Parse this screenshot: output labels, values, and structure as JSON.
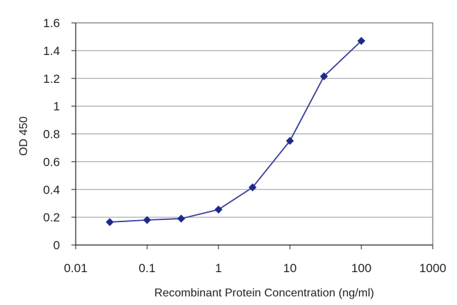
{
  "chart_data": {
    "type": "line",
    "title": "",
    "xlabel": "Recombinant Protein Concentration (ng/ml)",
    "ylabel": "OD 450",
    "x_scale": "log",
    "xlim": [
      0.01,
      1000
    ],
    "ylim": [
      0,
      1.6
    ],
    "x_ticks": [
      "0.01",
      "0.1",
      "1",
      "10",
      "100",
      "1000"
    ],
    "y_ticks": [
      "0",
      "0.2",
      "0.4",
      "0.6",
      "0.8",
      "1",
      "1.2",
      "1.4",
      "1.6"
    ],
    "grid": "horizontal",
    "legend": "none",
    "series": [
      {
        "color": "#3a3f9e",
        "marker": "diamond",
        "x": [
          0.03,
          0.1,
          0.3,
          1,
          3,
          10,
          30,
          100
        ],
        "y": [
          0.165,
          0.18,
          0.19,
          0.255,
          0.415,
          0.75,
          1.215,
          1.47
        ]
      }
    ]
  }
}
